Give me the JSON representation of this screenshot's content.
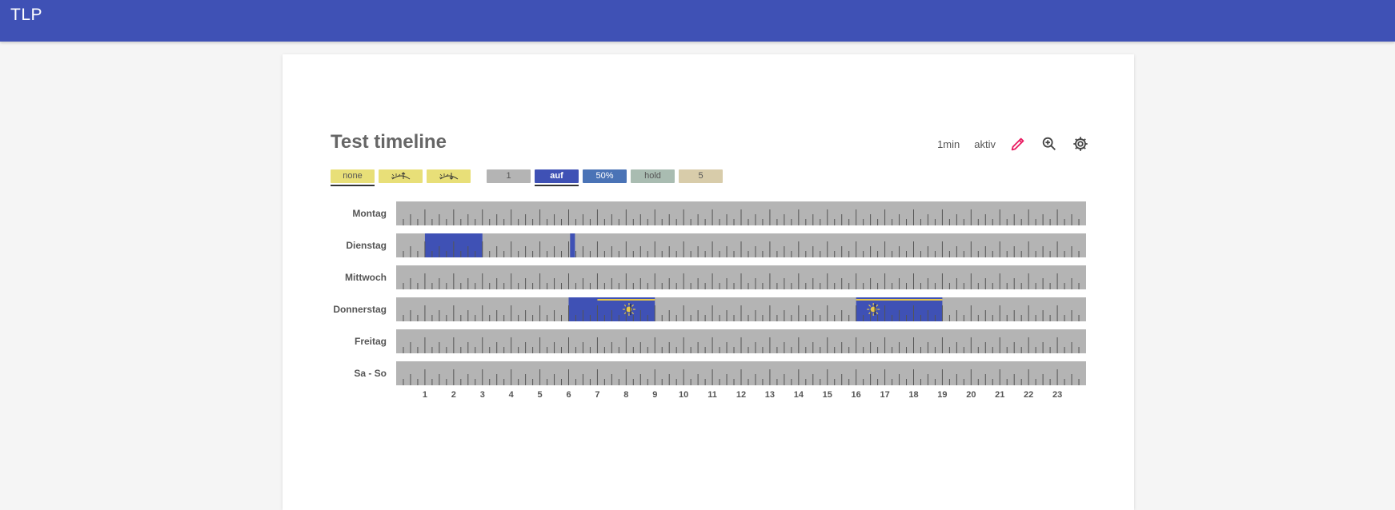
{
  "app": {
    "title": "TLP"
  },
  "timeline": {
    "title": "Test timeline",
    "resolution": "1min",
    "status": "aktiv",
    "icons": [
      "pencil-icon",
      "zoom-in-icon",
      "gear-icon"
    ]
  },
  "chips": [
    {
      "label": "none",
      "color": "#e8df78",
      "selected": true
    },
    {
      "icon": "sunrise-icon",
      "color": "#e8df78",
      "selected": false
    },
    {
      "icon": "sunset-icon",
      "color": "#e8df78",
      "selected": false
    },
    {
      "label": "1",
      "color": "#b4b4b4",
      "selected": false
    },
    {
      "label": "auf",
      "color": "#3f51b5",
      "selected": true
    },
    {
      "label": "50%",
      "color": "#4a73b6",
      "selected": false
    },
    {
      "label": "hold",
      "color": "#a9bcb1",
      "selected": false
    },
    {
      "label": "5",
      "color": "#d8ccaa",
      "selected": false
    }
  ],
  "days": [
    {
      "label": "Montag",
      "segments": []
    },
    {
      "label": "Dienstag",
      "segments": [
        {
          "start": 1.0,
          "end": 3.0,
          "value": "auf"
        },
        {
          "start": 6.05,
          "end": 6.22,
          "value": "auf"
        }
      ]
    },
    {
      "label": "Mittwoch",
      "segments": []
    },
    {
      "label": "Donnerstag",
      "segments": [
        {
          "start": 6.0,
          "end": 9.0,
          "value": "auf",
          "sun_from": 7.0,
          "sun_icon_at": 8.1
        },
        {
          "start": 16.0,
          "end": 19.0,
          "value": "auf",
          "sun_from": 16.0,
          "sun_icon_at": 16.6
        }
      ]
    },
    {
      "label": "Freitag",
      "segments": []
    },
    {
      "label": "Sa - So",
      "segments": []
    }
  ],
  "hour_labels": [
    "1",
    "2",
    "3",
    "4",
    "5",
    "6",
    "7",
    "8",
    "9",
    "10",
    "11",
    "12",
    "13",
    "14",
    "15",
    "16",
    "17",
    "18",
    "19",
    "20",
    "21",
    "22",
    "23"
  ],
  "colors": {
    "appbar": "#3f51b5",
    "track": "#b4b4b4",
    "auf": "#3f51b5",
    "sun": "#e8c84a",
    "edit_icon": "#e91e63"
  }
}
